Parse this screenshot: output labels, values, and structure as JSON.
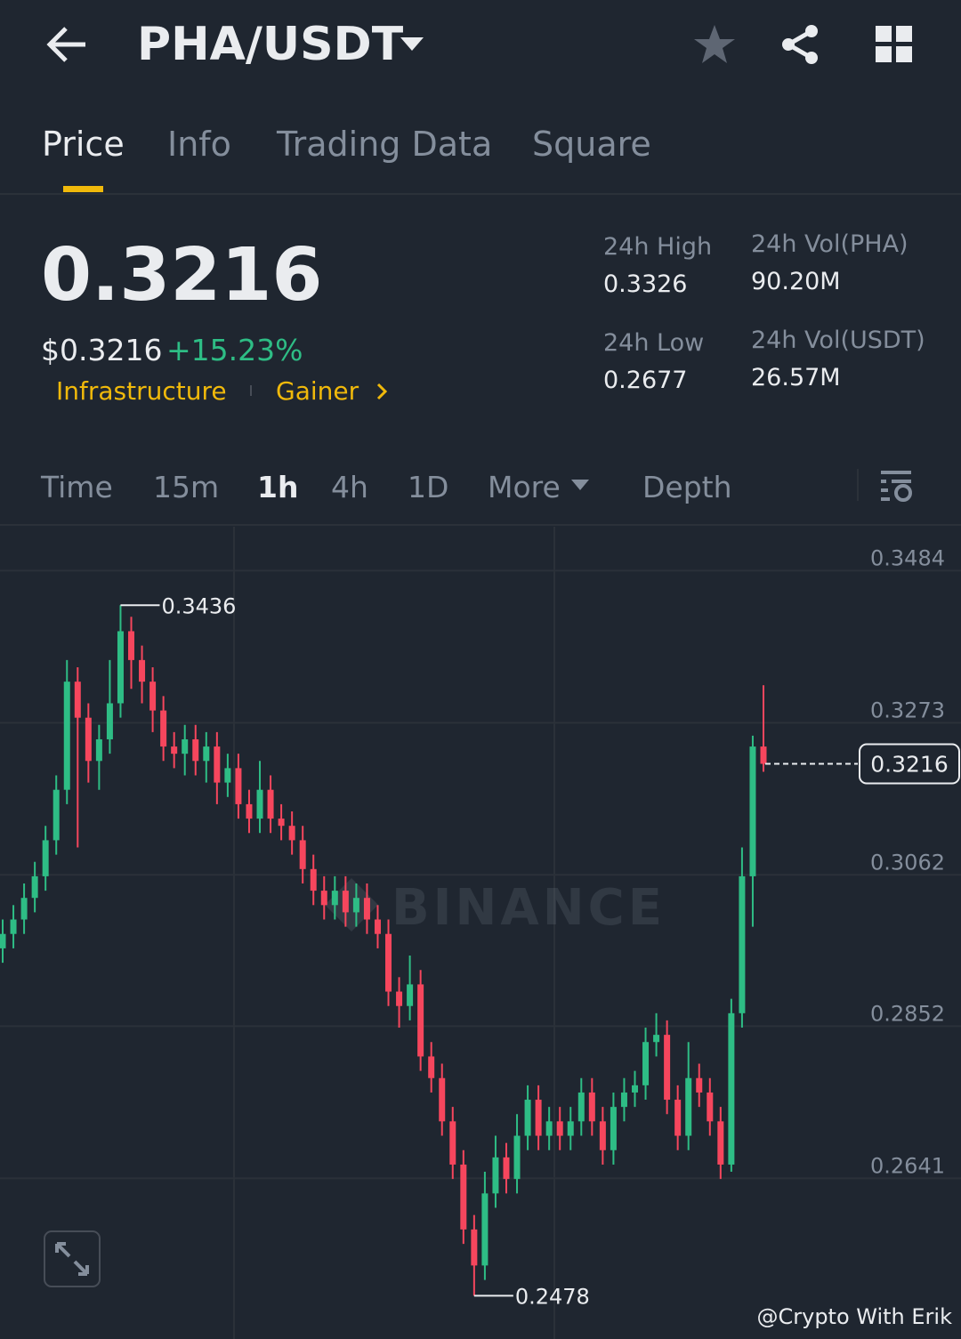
{
  "header": {
    "pair": "PHA/USDT"
  },
  "tabs": [
    "Price",
    "Info",
    "Trading Data",
    "Square"
  ],
  "summary": {
    "price": "0.3216",
    "usd_price": "$0.3216",
    "change": "+15.23%",
    "tags": [
      "Infrastructure",
      "Gainer"
    ]
  },
  "stats": [
    {
      "label": "24h High",
      "value": "0.3326"
    },
    {
      "label": "24h Vol(PHA)",
      "value": "90.20M"
    },
    {
      "label": "24h Low",
      "value": "0.2677"
    },
    {
      "label": "24h Vol(USDT)",
      "value": "26.57M"
    }
  ],
  "intervals": [
    "Time",
    "15m",
    "1h",
    "4h",
    "1D",
    "More",
    "Depth"
  ],
  "watermark": "BINANCE",
  "credit": "@Crypto With Erik",
  "chart_data": {
    "type": "candlestick",
    "up_color": "#2ebd85",
    "down_color": "#f6465d",
    "ylim": [
      0.2418,
      0.3545
    ],
    "yticks": [
      0.3484,
      0.3273,
      0.3062,
      0.2852,
      0.2641
    ],
    "grid": true,
    "open": [
      0.296,
      0.298,
      0.3,
      0.303,
      0.306,
      0.311,
      0.318,
      0.333,
      0.328,
      0.322,
      0.325,
      0.33,
      0.34,
      0.336,
      0.333,
      0.329,
      0.324,
      0.323,
      0.325,
      0.322,
      0.324,
      0.319,
      0.321,
      0.316,
      0.314,
      0.318,
      0.314,
      0.313,
      0.311,
      0.307,
      0.304,
      0.302,
      0.304,
      0.301,
      0.303,
      0.3,
      0.298,
      0.29,
      0.288,
      0.291,
      0.281,
      0.278,
      0.272,
      0.266,
      0.257,
      0.252,
      0.262,
      0.267,
      0.264,
      0.27,
      0.275,
      0.27,
      0.272,
      0.27,
      0.272,
      0.276,
      0.272,
      0.268,
      0.274,
      0.276,
      0.277,
      0.283,
      0.284,
      0.275,
      0.27,
      0.278,
      0.276,
      0.272,
      0.266,
      0.287,
      0.306,
      0.324
    ],
    "high": [
      0.3,
      0.302,
      0.305,
      0.308,
      0.313,
      0.32,
      0.336,
      0.335,
      0.33,
      0.327,
      0.336,
      0.3436,
      0.342,
      0.338,
      0.335,
      0.331,
      0.326,
      0.327,
      0.327,
      0.326,
      0.326,
      0.323,
      0.323,
      0.318,
      0.322,
      0.32,
      0.316,
      0.315,
      0.313,
      0.309,
      0.306,
      0.306,
      0.306,
      0.305,
      0.305,
      0.302,
      0.3,
      0.292,
      0.295,
      0.293,
      0.283,
      0.28,
      0.274,
      0.268,
      0.259,
      0.265,
      0.27,
      0.269,
      0.273,
      0.277,
      0.277,
      0.274,
      0.274,
      0.274,
      0.278,
      0.278,
      0.274,
      0.276,
      0.278,
      0.279,
      0.285,
      0.287,
      0.286,
      0.277,
      0.283,
      0.28,
      0.278,
      0.274,
      0.289,
      0.31,
      0.3255,
      0.3325
    ],
    "low": [
      0.294,
      0.296,
      0.298,
      0.301,
      0.304,
      0.309,
      0.316,
      0.31,
      0.319,
      0.318,
      0.323,
      0.328,
      0.332,
      0.33,
      0.326,
      0.322,
      0.321,
      0.32,
      0.32,
      0.319,
      0.316,
      0.317,
      0.314,
      0.312,
      0.312,
      0.312,
      0.311,
      0.309,
      0.305,
      0.302,
      0.3,
      0.3,
      0.299,
      0.299,
      0.298,
      0.296,
      0.288,
      0.285,
      0.286,
      0.279,
      0.276,
      0.27,
      0.264,
      0.255,
      0.2478,
      0.25,
      0.26,
      0.262,
      0.262,
      0.268,
      0.268,
      0.268,
      0.268,
      0.268,
      0.27,
      0.27,
      0.266,
      0.266,
      0.272,
      0.274,
      0.275,
      0.281,
      0.273,
      0.268,
      0.268,
      0.274,
      0.27,
      0.264,
      0.265,
      0.285,
      0.299,
      0.3205
    ],
    "close": [
      0.298,
      0.3,
      0.303,
      0.306,
      0.311,
      0.318,
      0.333,
      0.328,
      0.322,
      0.325,
      0.33,
      0.34,
      0.336,
      0.333,
      0.329,
      0.324,
      0.323,
      0.325,
      0.322,
      0.324,
      0.319,
      0.321,
      0.316,
      0.314,
      0.318,
      0.314,
      0.313,
      0.311,
      0.307,
      0.304,
      0.302,
      0.304,
      0.301,
      0.303,
      0.3,
      0.298,
      0.29,
      0.288,
      0.291,
      0.281,
      0.278,
      0.272,
      0.266,
      0.257,
      0.252,
      0.262,
      0.267,
      0.264,
      0.27,
      0.275,
      0.27,
      0.272,
      0.27,
      0.272,
      0.276,
      0.272,
      0.268,
      0.274,
      0.276,
      0.277,
      0.283,
      0.284,
      0.275,
      0.27,
      0.278,
      0.276,
      0.272,
      0.266,
      0.287,
      0.306,
      0.324,
      0.3216
    ]
  }
}
